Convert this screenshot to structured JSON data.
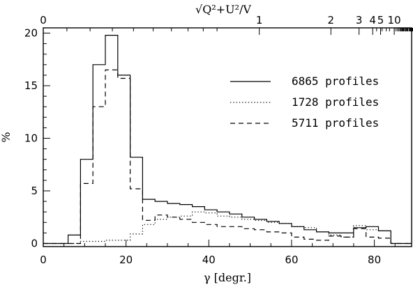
{
  "chart_data": {
    "type": "line",
    "title": "",
    "xlabel": "γ [degr.]",
    "ylabel": "%",
    "top_axis_label": "√Q²+U²/V",
    "xlim": [
      0,
      89
    ],
    "ylim": [
      -0.3,
      20.5
    ],
    "x_ticks": [
      0,
      20,
      40,
      60,
      80
    ],
    "y_ticks": [
      0,
      5,
      10,
      15,
      20
    ],
    "top_axis": {
      "ticks": [
        {
          "gamma": 0,
          "label": "0"
        },
        {
          "gamma": 52.2,
          "label": "1"
        },
        {
          "gamma": 69.5,
          "label": "2"
        },
        {
          "gamma": 76.3,
          "label": "3"
        },
        {
          "gamma": 79.6,
          "label": "4"
        },
        {
          "gamma": 81.5,
          "label": "5"
        },
        {
          "gamma": 84.8,
          "label": "10"
        }
      ],
      "minor_ticks": [
        0.1,
        0.2,
        0.3,
        0.4,
        0.5,
        0.6,
        0.7,
        0.8,
        0.9,
        6,
        7,
        8,
        9,
        11,
        12,
        13,
        14,
        15,
        16,
        17,
        18,
        19,
        20,
        22,
        24,
        26,
        28,
        30,
        35,
        40,
        45,
        50,
        60,
        70,
        80,
        90,
        100,
        120,
        150,
        200,
        300,
        500
      ]
    },
    "bin_edges": [
      0,
      3,
      6,
      9,
      12,
      15,
      18,
      21,
      24,
      27,
      30,
      33,
      36,
      39,
      42,
      45,
      48,
      51,
      54,
      57,
      60,
      63,
      66,
      69,
      72,
      75,
      78,
      81,
      84,
      87,
      89
    ],
    "legend_placement": "upper-right",
    "series": [
      {
        "name": "6865 profiles",
        "style": "solid",
        "values": [
          0,
          0,
          0.8,
          8.0,
          17.0,
          19.8,
          16.0,
          8.2,
          4.2,
          4.0,
          3.8,
          3.7,
          3.5,
          3.2,
          3.0,
          2.8,
          2.5,
          2.3,
          2.1,
          1.9,
          1.6,
          1.3,
          1.1,
          1.0,
          1.0,
          1.5,
          1.6,
          1.2,
          0,
          0
        ]
      },
      {
        "name": "1728 profiles",
        "style": "dotted",
        "values": [
          0,
          0,
          0,
          0.2,
          0.2,
          0.3,
          0.3,
          0.9,
          1.8,
          2.3,
          2.5,
          2.6,
          3.0,
          2.9,
          2.6,
          2.5,
          2.3,
          2.2,
          2.0,
          1.9,
          1.6,
          1.5,
          1.1,
          0.8,
          0.6,
          1.7,
          1.3,
          1.2,
          0,
          0
        ]
      },
      {
        "name": "5711 profiles",
        "style": "dashed",
        "values": [
          0,
          0,
          0,
          5.7,
          13.0,
          16.5,
          15.7,
          5.2,
          2.2,
          2.7,
          2.5,
          2.3,
          2.0,
          1.8,
          1.6,
          1.6,
          1.4,
          1.3,
          1.1,
          1.0,
          0.6,
          0.4,
          0.3,
          0.7,
          0.6,
          1.4,
          0.6,
          0.5,
          0,
          0
        ]
      }
    ]
  }
}
